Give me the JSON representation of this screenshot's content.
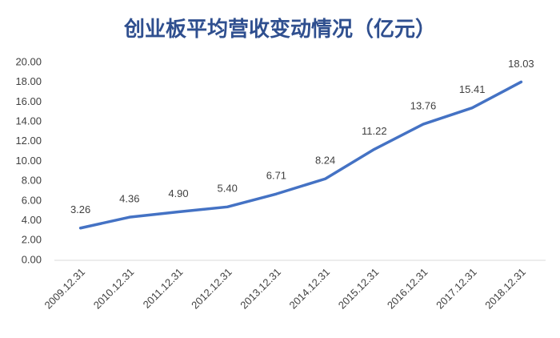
{
  "chart_data": {
    "type": "line",
    "title": "创业板平均营收变动情况（亿元）",
    "categories": [
      "2009.12.31",
      "2010.12.31",
      "2011.12.31",
      "2012.12.31",
      "2013.12.31",
      "2014.12.31",
      "2015.12.31",
      "2016.12.31",
      "2017.12.31",
      "2018.12.31"
    ],
    "values": [
      3.26,
      4.36,
      4.9,
      5.4,
      6.71,
      8.24,
      11.22,
      13.76,
      15.41,
      18.03
    ],
    "value_labels": [
      "3.26",
      "4.36",
      "4.90",
      "5.40",
      "6.71",
      "8.24",
      "11.22",
      "13.76",
      "15.41",
      "18.03"
    ],
    "color": "#4472c4",
    "ylim": [
      0,
      20
    ],
    "yticks": [
      {
        "value": 0,
        "label": "0.00"
      },
      {
        "value": 2,
        "label": "2.00"
      },
      {
        "value": 4,
        "label": "4.00"
      },
      {
        "value": 6,
        "label": "6.00"
      },
      {
        "value": 8,
        "label": "8.00"
      },
      {
        "value": 10,
        "label": "10.00"
      },
      {
        "value": 12,
        "label": "12.00"
      },
      {
        "value": 14,
        "label": "14.00"
      },
      {
        "value": 16,
        "label": "16.00"
      },
      {
        "value": 18,
        "label": "18.00"
      },
      {
        "value": 20,
        "label": "20.00"
      }
    ],
    "grid": false
  }
}
